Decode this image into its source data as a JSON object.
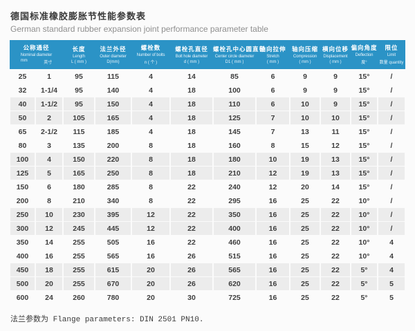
{
  "page": {
    "title_cn": "德国标准橡胶膨胀节性能参数表",
    "title_en": "German standard rubber expansion joint performance parameter table",
    "footnote": "法兰参数为 Flange parameters: DIN 2501 PN10."
  },
  "colors": {
    "header_bg": "#2b93c6",
    "shaded_row_bg": "#ececec",
    "body_text": "#3e3e3e",
    "subtitle_text": "#8f8f8f"
  },
  "table": {
    "columns": [
      {
        "cn": "公称通径",
        "en": "Nominal diameter",
        "unit_parts": [
          "mm",
          "英寸"
        ],
        "span": 2
      },
      {
        "cn": "长度",
        "en": "Length",
        "unit": "L ( mm )"
      },
      {
        "cn": "法兰外径",
        "en": "Outer diameter",
        "unit": "D(mm)"
      },
      {
        "cn": "螺栓数",
        "en": "Number of bolts",
        "unit": "n ( 个 )"
      },
      {
        "cn": "螺栓孔直径",
        "en": "Bolt hole diameter",
        "unit": "d ( mm )"
      },
      {
        "cn": "螺栓孔中心圆直径",
        "en": "Center circle diameter",
        "unit": "D1 ( mm )"
      },
      {
        "cn": "轴向拉伸",
        "en": "Stretch",
        "unit": "( mm )"
      },
      {
        "cn": "轴向压缩",
        "en": "Compression",
        "unit": "( mm )"
      },
      {
        "cn": "横向位移",
        "en": "Displacement",
        "unit": "( mm )"
      },
      {
        "cn": "偏向角度",
        "en": "Deflection",
        "unit": "度°"
      },
      {
        "cn": "限位",
        "en": "Limit",
        "unit": "数量 quantity"
      }
    ],
    "rows": [
      [
        "25",
        "1",
        "95",
        "115",
        "4",
        "14",
        "85",
        "6",
        "9",
        "9",
        "15°",
        "/"
      ],
      [
        "32",
        "1-1/4",
        "95",
        "140",
        "4",
        "18",
        "100",
        "6",
        "9",
        "9",
        "15°",
        "/"
      ],
      [
        "40",
        "1-1/2",
        "95",
        "150",
        "4",
        "18",
        "110",
        "6",
        "10",
        "9",
        "15°",
        "/"
      ],
      [
        "50",
        "2",
        "105",
        "165",
        "4",
        "18",
        "125",
        "7",
        "10",
        "10",
        "15°",
        "/"
      ],
      [
        "65",
        "2-1/2",
        "115",
        "185",
        "4",
        "18",
        "145",
        "7",
        "13",
        "11",
        "15°",
        "/"
      ],
      [
        "80",
        "3",
        "135",
        "200",
        "8",
        "18",
        "160",
        "8",
        "15",
        "12",
        "15°",
        "/"
      ],
      [
        "100",
        "4",
        "150",
        "220",
        "8",
        "18",
        "180",
        "10",
        "19",
        "13",
        "15°",
        "/"
      ],
      [
        "125",
        "5",
        "165",
        "250",
        "8",
        "18",
        "210",
        "12",
        "19",
        "13",
        "15°",
        "/"
      ],
      [
        "150",
        "6",
        "180",
        "285",
        "8",
        "22",
        "240",
        "12",
        "20",
        "14",
        "15°",
        "/"
      ],
      [
        "200",
        "8",
        "210",
        "340",
        "8",
        "22",
        "295",
        "16",
        "25",
        "22",
        "10°",
        "/"
      ],
      [
        "250",
        "10",
        "230",
        "395",
        "12",
        "22",
        "350",
        "16",
        "25",
        "22",
        "10°",
        "/"
      ],
      [
        "300",
        "12",
        "245",
        "445",
        "12",
        "22",
        "400",
        "16",
        "25",
        "22",
        "10°",
        "/"
      ],
      [
        "350",
        "14",
        "255",
        "505",
        "16",
        "22",
        "460",
        "16",
        "25",
        "22",
        "10°",
        "4"
      ],
      [
        "400",
        "16",
        "255",
        "565",
        "16",
        "26",
        "515",
        "16",
        "25",
        "22",
        "10°",
        "4"
      ],
      [
        "450",
        "18",
        "255",
        "615",
        "20",
        "26",
        "565",
        "16",
        "25",
        "22",
        "5°",
        "4"
      ],
      [
        "500",
        "20",
        "255",
        "670",
        "20",
        "26",
        "620",
        "16",
        "25",
        "22",
        "5°",
        "5"
      ],
      [
        "600",
        "24",
        "260",
        "780",
        "20",
        "30",
        "725",
        "16",
        "25",
        "22",
        "5°",
        "5"
      ]
    ]
  }
}
